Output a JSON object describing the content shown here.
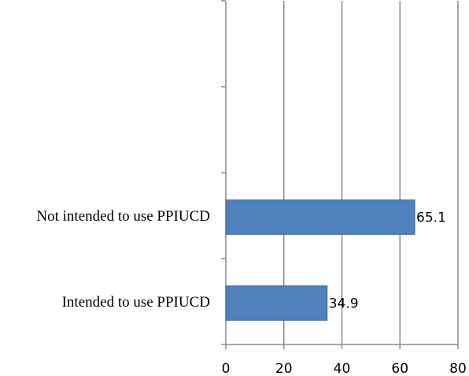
{
  "chart_data": {
    "type": "bar",
    "orientation": "horizontal",
    "categories": [
      null,
      null,
      "Not intended to use PPIUCD",
      "Intended to use PPIUCD"
    ],
    "values": [
      null,
      null,
      65.1,
      34.9
    ],
    "color": "#4f81bd",
    "xlim": [
      0,
      80
    ],
    "xticks": [
      0,
      20,
      40,
      60,
      80
    ],
    "grid": true
  }
}
